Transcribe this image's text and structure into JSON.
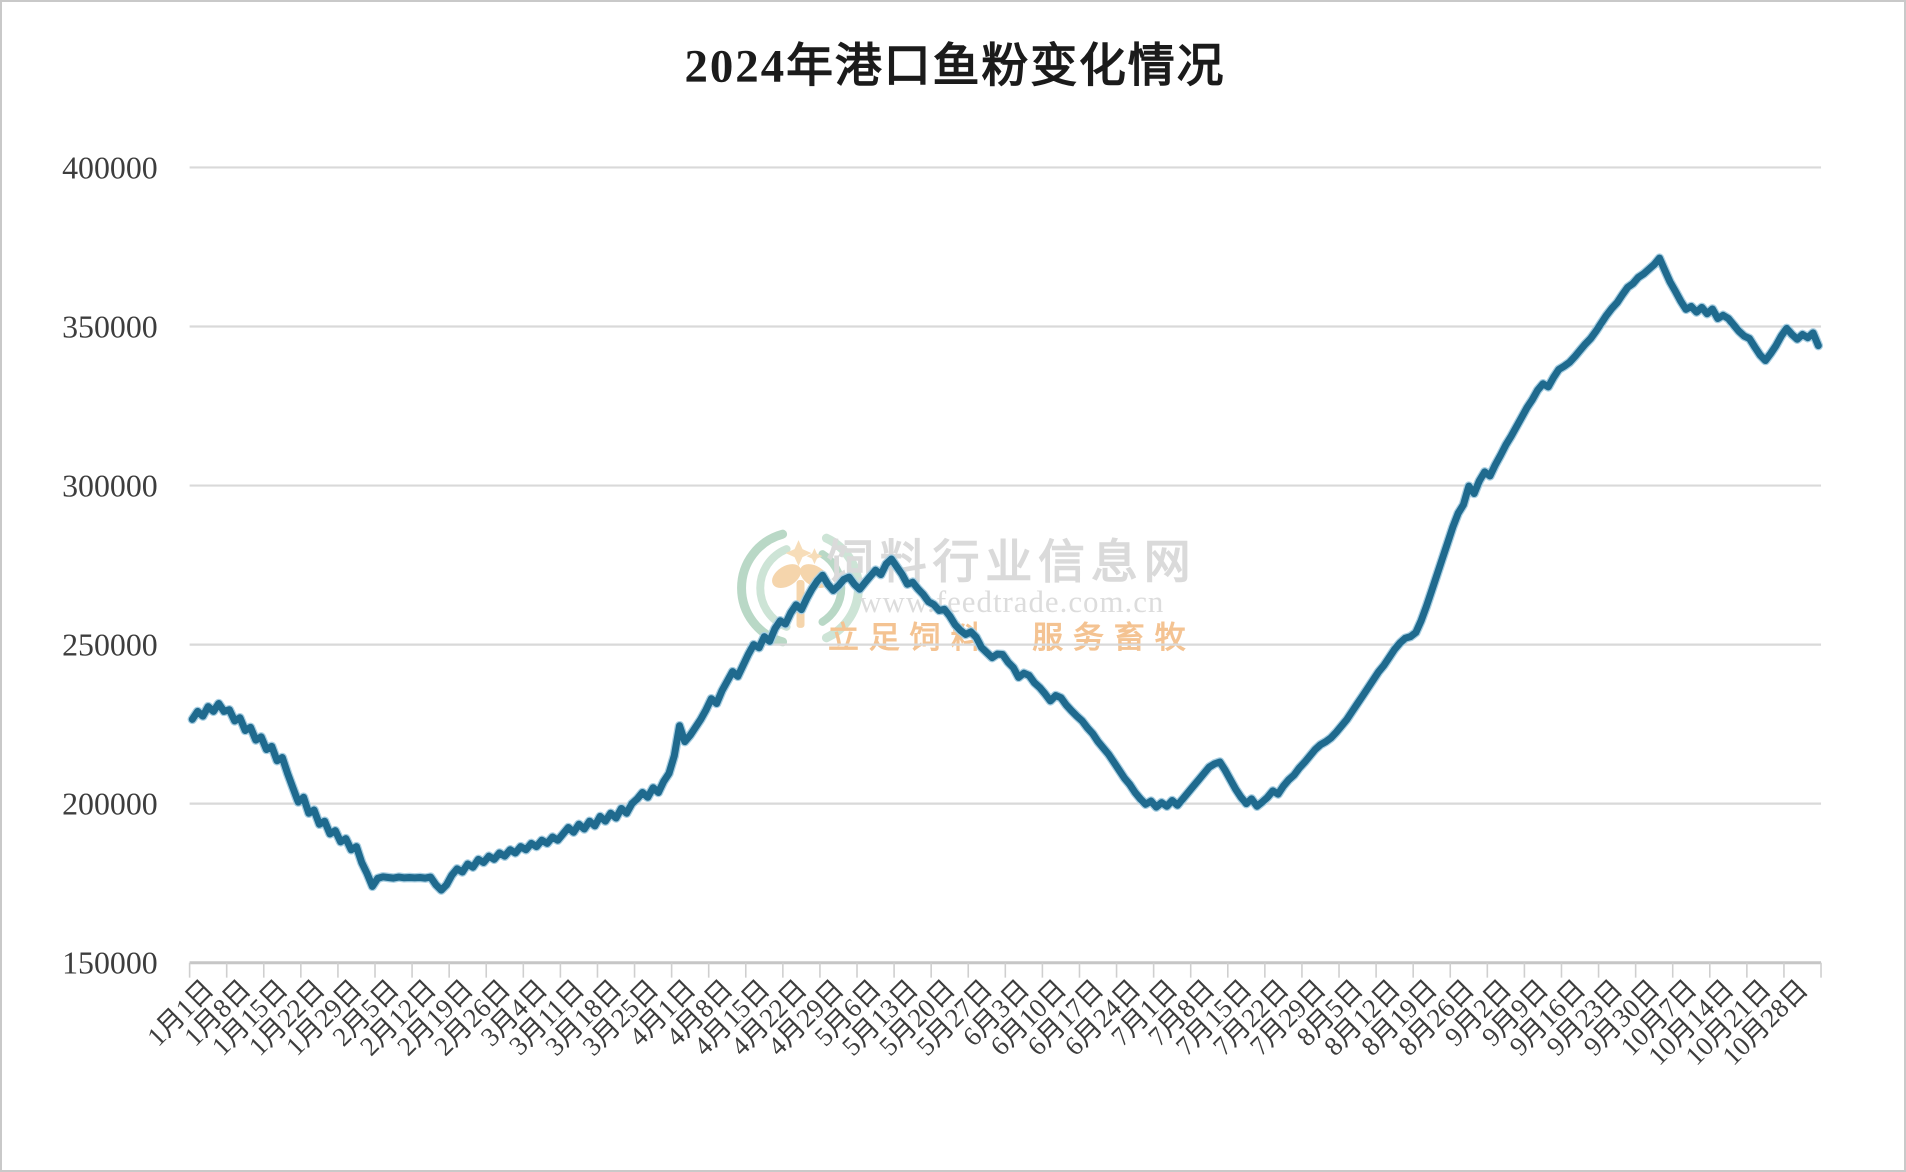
{
  "title": "2024年港口鱼粉变化情况",
  "watermark": {
    "site_name": "饲料行业信息网",
    "site_url": "www.feedtrade.com.cn",
    "slogan": "立足饲料　服务畜牧"
  },
  "colors": {
    "line": "#1f6a8e",
    "line_halo": "#a9cfe2",
    "grid": "#d9d9d9",
    "axis": "#c6c6c6",
    "tick": "#cfcfcf",
    "axis_text": "#3d3d3d",
    "title_text": "#1b1b1b",
    "watermark_text": "#dadada",
    "watermark_slogan": "#f4c392",
    "logo_green_outer": "#b9d8c6",
    "logo_green_inner": "#cde4d6",
    "logo_orange": "#f5d5ac"
  },
  "chart_data": {
    "type": "line",
    "title": "2024年港口鱼粉变化情况",
    "xlabel": "",
    "ylabel": "",
    "ylim": [
      150000,
      400000
    ],
    "y_ticks": [
      150000,
      200000,
      250000,
      300000,
      350000,
      400000
    ],
    "grid": true,
    "legend": false,
    "x_tick_labels": [
      "1月1日",
      "1月8日",
      "1月15日",
      "1月22日",
      "1月29日",
      "2月5日",
      "2月12日",
      "2月19日",
      "2月26日",
      "3月4日",
      "3月11日",
      "3月18日",
      "3月25日",
      "4月1日",
      "4月8日",
      "4月15日",
      "4月22日",
      "4月29日",
      "5月6日",
      "5月13日",
      "5月20日",
      "5月27日",
      "6月3日",
      "6月10日",
      "6月17日",
      "6月24日",
      "7月1日",
      "7月8日",
      "7月15日",
      "7月22日",
      "7月29日",
      "8月5日",
      "8月12日",
      "8月19日",
      "8月26日",
      "9月2日",
      "9月9日",
      "9月16日",
      "9月23日",
      "9月30日",
      "10月7日",
      "10月14日",
      "10月21日",
      "10月28日"
    ],
    "x_label_every_n_points": 7,
    "series": [
      {
        "values": [
          226500,
          229000,
          227500,
          230500,
          229000,
          231500,
          229000,
          229500,
          226000,
          227000,
          223000,
          224000,
          220000,
          221000,
          217000,
          218000,
          213500,
          214500,
          209500,
          205000,
          200500,
          202000,
          197000,
          198000,
          193500,
          194500,
          190500,
          191500,
          188000,
          189000,
          185500,
          186500,
          181500,
          178000,
          174000,
          176500,
          177000,
          176800,
          176600,
          176900,
          176700,
          176800,
          176700,
          176800,
          176600,
          176900,
          174500,
          172800,
          174500,
          177500,
          179500,
          178500,
          181000,
          180000,
          182500,
          181500,
          183500,
          182500,
          184500,
          183500,
          185500,
          184500,
          186500,
          185500,
          187500,
          186500,
          188500,
          187500,
          189500,
          188500,
          190500,
          192500,
          191000,
          193500,
          192000,
          194500,
          193000,
          196000,
          194500,
          197000,
          195500,
          198500,
          197000,
          200000,
          201500,
          203500,
          202000,
          205000,
          203500,
          207000,
          209500,
          215000,
          224500,
          219500,
          221500,
          224000,
          226500,
          229500,
          233000,
          231500,
          235500,
          238500,
          241500,
          240000,
          243500,
          247000,
          250000,
          249000,
          252500,
          251000,
          255000,
          257500,
          256500,
          260000,
          262500,
          261000,
          264500,
          267500,
          270000,
          271800,
          269000,
          267000,
          268500,
          270500,
          271200,
          269000,
          267400,
          269500,
          271500,
          273400,
          272000,
          275300,
          276900,
          274500,
          272100,
          269000,
          269600,
          267500,
          265800,
          263500,
          262600,
          260700,
          261100,
          259000,
          256300,
          254500,
          253200,
          254000,
          252300,
          249100,
          247500,
          245900,
          247000,
          246900,
          244500,
          242800,
          239700,
          241000,
          240300,
          238000,
          236500,
          234500,
          232300,
          234000,
          233300,
          231000,
          229200,
          227500,
          226000,
          223800,
          222000,
          219500,
          217500,
          215500,
          213000,
          210500,
          208000,
          206000,
          203500,
          201500,
          199800,
          200800,
          198900,
          200300,
          199200,
          201000,
          199500,
          201500,
          203500,
          205500,
          207500,
          209500,
          211500,
          212500,
          213100,
          210500,
          207500,
          204500,
          202000,
          200000,
          201500,
          199200,
          200500,
          202000,
          204000,
          203000,
          205500,
          207500,
          209000,
          211200,
          213000,
          215000,
          217000,
          218500,
          219500,
          220700,
          222500,
          224500,
          226500,
          229000,
          231500,
          234000,
          236500,
          239000,
          241500,
          243500,
          246000,
          248500,
          250500,
          252000,
          252500,
          253800,
          257500,
          262000,
          267000,
          272000,
          277000,
          282000,
          287000,
          291300,
          294000,
          299800,
          297500,
          301500,
          304300,
          303000,
          306500,
          309500,
          312800,
          315500,
          318500,
          321500,
          324500,
          327000,
          330000,
          332000,
          331000,
          334000,
          336500,
          337500,
          338700,
          340500,
          342500,
          344500,
          346200,
          348500,
          351000,
          353500,
          355700,
          357500,
          360000,
          362300,
          363500,
          365400,
          366500,
          368000,
          369500,
          371500,
          367700,
          364000,
          361100,
          358000,
          355400,
          356300,
          354500,
          356000,
          354000,
          355500,
          352500,
          353500,
          352500,
          350500,
          348500,
          347000,
          346200,
          343500,
          341000,
          339300,
          341500,
          344000,
          347000,
          349400,
          347500,
          346000,
          347500,
          346500,
          348000,
          344000
        ]
      }
    ]
  }
}
